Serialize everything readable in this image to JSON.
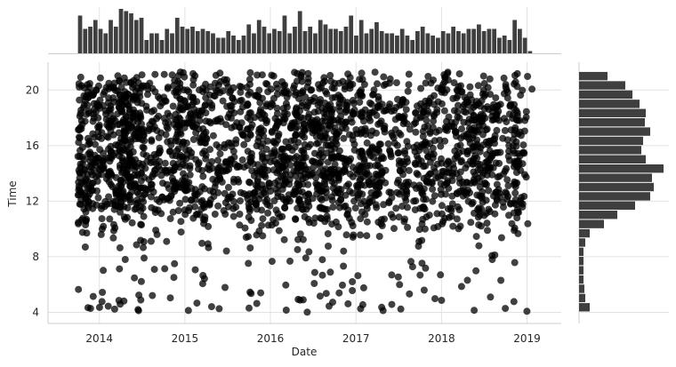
{
  "chart_data": {
    "type": "scatter",
    "title": "",
    "xlabel": "Date",
    "ylabel": "Time",
    "x_ticks": [
      "2014",
      "2015",
      "2016",
      "2017",
      "2018",
      "2019"
    ],
    "x_tick_values": [
      2014,
      2015,
      2016,
      2017,
      2018,
      2019
    ],
    "xlim": [
      2013.4,
      2019.4
    ],
    "y_ticks": [
      "4",
      "8",
      "12",
      "16",
      "20"
    ],
    "y_tick_values": [
      4,
      8,
      12,
      16,
      20
    ],
    "ylim": [
      3.2,
      22.0
    ],
    "grid": true,
    "point_color": "#000000",
    "bar_color": "#3f3f3f",
    "marginal_x": {
      "type": "histogram",
      "bin_start": 2013.75,
      "bin_end": 2019.07,
      "counts": [
        0.85,
        0.55,
        0.6,
        0.75,
        0.55,
        0.45,
        0.75,
        0.6,
        1.0,
        0.95,
        0.9,
        0.75,
        0.8,
        0.3,
        0.45,
        0.45,
        0.3,
        0.55,
        0.45,
        0.8,
        0.6,
        0.55,
        0.6,
        0.5,
        0.55,
        0.5,
        0.45,
        0.35,
        0.35,
        0.5,
        0.4,
        0.3,
        0.4,
        0.65,
        0.45,
        0.75,
        0.6,
        0.45,
        0.55,
        0.5,
        0.85,
        0.45,
        0.6,
        0.95,
        0.5,
        0.6,
        0.45,
        0.75,
        0.65,
        0.55,
        0.55,
        0.5,
        0.6,
        0.85,
        0.4,
        0.75,
        0.45,
        0.55,
        0.7,
        0.5,
        0.45,
        0.45,
        0.4,
        0.55,
        0.4,
        0.3,
        0.5,
        0.6,
        0.45,
        0.4,
        0.35,
        0.5,
        0.45,
        0.6,
        0.5,
        0.45,
        0.55,
        0.55,
        0.65,
        0.5,
        0.55,
        0.55,
        0.35,
        0.4,
        0.3,
        0.75,
        0.55,
        0.35,
        0.05
      ]
    },
    "marginal_y": {
      "type": "histogram",
      "bin_start": 4.0,
      "bin_end": 21.3,
      "counts": [
        0.12,
        0.07,
        0.06,
        0.05,
        0.05,
        0.05,
        0.05,
        0.07,
        0.12,
        0.28,
        0.43,
        0.63,
        0.8,
        0.84,
        0.82,
        0.95,
        0.75,
        0.7,
        0.72,
        0.8,
        0.74,
        0.75,
        0.68,
        0.6,
        0.52,
        0.32
      ]
    }
  }
}
